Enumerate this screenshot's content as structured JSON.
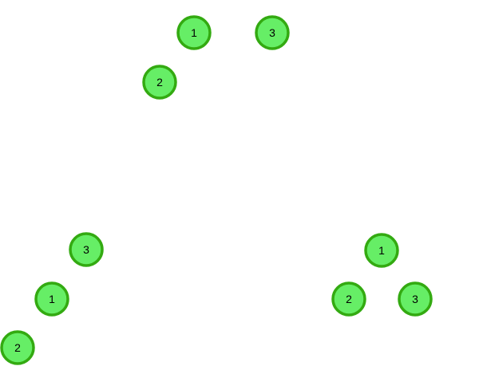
{
  "colors": {
    "node_fill": "#66ee66",
    "node_stroke": "#33aa11",
    "label": "#000000",
    "background": "#ffffff"
  },
  "trees": [
    {
      "id": "top",
      "nodes": [
        {
          "label": "1"
        },
        {
          "label": "3"
        },
        {
          "label": "2"
        }
      ]
    },
    {
      "id": "bottom-left",
      "nodes": [
        {
          "label": "3"
        },
        {
          "label": "1"
        },
        {
          "label": "2"
        }
      ]
    },
    {
      "id": "bottom-right",
      "nodes": [
        {
          "label": "1"
        },
        {
          "label": "2"
        },
        {
          "label": "3"
        }
      ]
    }
  ]
}
